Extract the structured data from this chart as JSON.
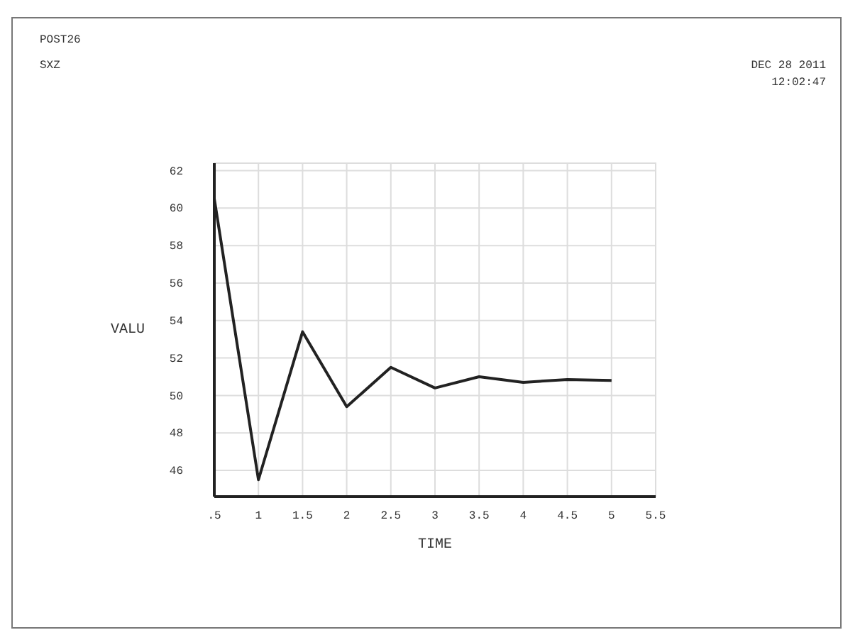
{
  "chart_data": {
    "type": "line",
    "xlabel": "TIME",
    "ylabel": "VALU",
    "annotations": [
      "POST26",
      "SXZ",
      "DEC 28 2011",
      "12:02:47"
    ],
    "x": [
      0.5,
      1,
      1.5,
      2,
      2.5,
      3,
      3.5,
      4,
      4.5,
      5
    ],
    "series": [
      {
        "color": "#222222",
        "values": [
          60.5,
          45.5,
          53.4,
          49.4,
          51.5,
          50.4,
          51.0,
          50.7,
          50.85,
          50.8
        ]
      }
    ],
    "xlim": [
      0.5,
      5.5
    ],
    "xticks": [
      {
        "value": 0.5,
        "label": ".5"
      },
      1,
      1.5,
      2,
      2.5,
      3,
      3.5,
      4,
      4.5,
      5,
      5.5
    ],
    "ylim": [
      44.6,
      62.4
    ],
    "yticks": [
      46,
      48,
      50,
      52,
      54,
      56,
      58,
      60,
      62
    ],
    "grid": true,
    "marker": "none",
    "line_style": "solid"
  }
}
